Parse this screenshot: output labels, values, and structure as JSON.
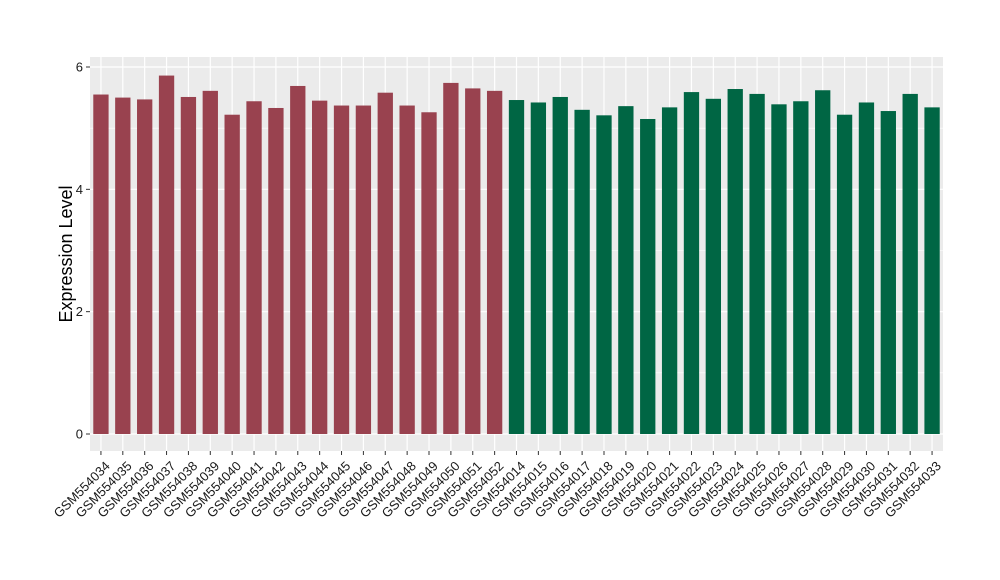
{
  "chart_data": {
    "type": "bar",
    "title": "",
    "xlabel": "",
    "ylabel": "Expression Level",
    "ylim": [
      0,
      6.1
    ],
    "yticks": [
      0,
      2,
      4,
      6
    ],
    "grid": true,
    "legend": "none",
    "categories": [
      "GSM554034",
      "GSM554035",
      "GSM554036",
      "GSM554037",
      "GSM554038",
      "GSM554039",
      "GSM554040",
      "GSM554041",
      "GSM554042",
      "GSM554043",
      "GSM554044",
      "GSM554045",
      "GSM554046",
      "GSM554047",
      "GSM554048",
      "GSM554049",
      "GSM554050",
      "GSM554051",
      "GSM554052",
      "GSM554014",
      "GSM554015",
      "GSM554016",
      "GSM554017",
      "GSM554018",
      "GSM554019",
      "GSM554020",
      "GSM554021",
      "GSM554022",
      "GSM554023",
      "GSM554024",
      "GSM554025",
      "GSM554026",
      "GSM554027",
      "GSM554028",
      "GSM554029",
      "GSM554030",
      "GSM554031",
      "GSM554032",
      "GSM554033"
    ],
    "values": [
      5.55,
      5.5,
      5.47,
      5.86,
      5.51,
      5.61,
      5.22,
      5.44,
      5.33,
      5.69,
      5.45,
      5.37,
      5.37,
      5.58,
      5.37,
      5.26,
      5.74,
      5.65,
      5.61,
      5.46,
      5.42,
      5.51,
      5.3,
      5.21,
      5.36,
      5.15,
      5.34,
      5.59,
      5.48,
      5.64,
      5.56,
      5.39,
      5.44,
      5.62,
      5.22,
      5.42,
      5.28,
      5.56,
      5.34
    ],
    "colors": [
      "#99424f",
      "#99424f",
      "#99424f",
      "#99424f",
      "#99424f",
      "#99424f",
      "#99424f",
      "#99424f",
      "#99424f",
      "#99424f",
      "#99424f",
      "#99424f",
      "#99424f",
      "#99424f",
      "#99424f",
      "#99424f",
      "#99424f",
      "#99424f",
      "#99424f",
      "#006644",
      "#006644",
      "#006644",
      "#006644",
      "#006644",
      "#006644",
      "#006644",
      "#006644",
      "#006644",
      "#006644",
      "#006644",
      "#006644",
      "#006644",
      "#006644",
      "#006644",
      "#006644",
      "#006644",
      "#006644",
      "#006644",
      "#006644"
    ],
    "panel_background": "#ebebeb",
    "gridline_color": "#ffffff"
  }
}
